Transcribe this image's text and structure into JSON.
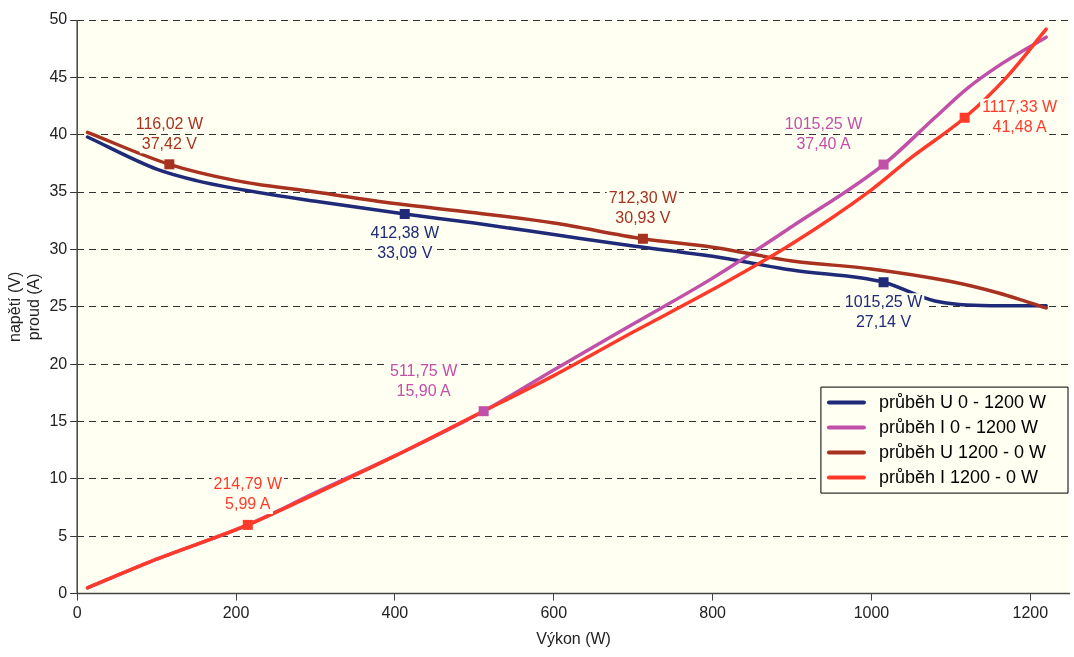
{
  "chart_data": {
    "type": "line",
    "xlabel": "Výkon (W)",
    "ylabel": "napětí (V)\nproud (A)",
    "xlim": [
      0,
      1250
    ],
    "xticks": [
      0,
      200,
      400,
      600,
      800,
      1000,
      1200
    ],
    "ylim": [
      0,
      50
    ],
    "yticks": [
      0,
      5,
      10,
      15,
      20,
      25,
      30,
      35,
      40,
      45,
      50
    ],
    "grid": "y",
    "legend": "right",
    "marker": "none",
    "line_style": "solid",
    "series": [
      {
        "name": "průběh U 0 - 1200 W",
        "color": "#1f2a78",
        "x": [
          13,
          100,
          150,
          200,
          300,
          412.38,
          500,
          600,
          700,
          800,
          900,
          1015.25,
          1080,
          1150,
          1220
        ],
        "values": [
          39.8,
          37,
          36,
          35.3,
          34.2,
          33.09,
          32.3,
          31.3,
          30.3,
          29.4,
          28.2,
          27.14,
          25.5,
          25.1,
          25.1
        ]
      },
      {
        "name": "průběh I 0 - 1200 W",
        "color": "#c050a8",
        "x": [
          13,
          100,
          214.79,
          300,
          400,
          511.75,
          600,
          700,
          800,
          900,
          1015.25,
          1080,
          1120,
          1160,
          1220
        ],
        "values": [
          0.5,
          3,
          5.99,
          8.8,
          12,
          15.9,
          19.5,
          23.5,
          27.5,
          32,
          37.4,
          41.5,
          44,
          46,
          48.5
        ]
      },
      {
        "name": "průběh U 1200 - 0 W",
        "color": "#a83220",
        "x": [
          13,
          116.02,
          200,
          300,
          400,
          500,
          600,
          712.3,
          800,
          900,
          1000,
          1100,
          1160,
          1220
        ],
        "values": [
          40.2,
          37.42,
          36,
          35,
          34,
          33.2,
          32.3,
          30.93,
          30.2,
          29,
          28.3,
          27.2,
          26.2,
          24.9
        ]
      },
      {
        "name": "průběh I 1200 - 0 W",
        "color": "#ff3a2a",
        "x": [
          13,
          100,
          214.79,
          300,
          400,
          500,
          600,
          700,
          800,
          900,
          1000,
          1050,
          1117.33,
          1170,
          1220
        ],
        "values": [
          0.5,
          3,
          5.99,
          8.7,
          12,
          15.5,
          19,
          22.8,
          26.5,
          30.5,
          35.2,
          38,
          41.48,
          45,
          49.2
        ]
      }
    ],
    "annotations": [
      {
        "text": "412,38 W\n33,09 V",
        "x": 412.38,
        "y": 33.09
      },
      {
        "text": "1015,25 W\n27,14 V",
        "x": 1015.25,
        "y": 27.14
      },
      {
        "text": "511,75 W\n15,90 A",
        "x": 511.75,
        "y": 15.9
      },
      {
        "text": "1015,25 W\n37,40 A",
        "x": 1015.25,
        "y": 37.4
      },
      {
        "text": "116,02 W\n37,42 V",
        "x": 116.02,
        "y": 37.42
      },
      {
        "text": "712,30 W\n30,93 V",
        "x": 712.3,
        "y": 30.93
      },
      {
        "text": "214,79 W\n5,99 A",
        "x": 214.79,
        "y": 5.99
      },
      {
        "text": "1117,33 W\n41,48 A",
        "x": 1117.33,
        "y": 41.48
      }
    ]
  }
}
